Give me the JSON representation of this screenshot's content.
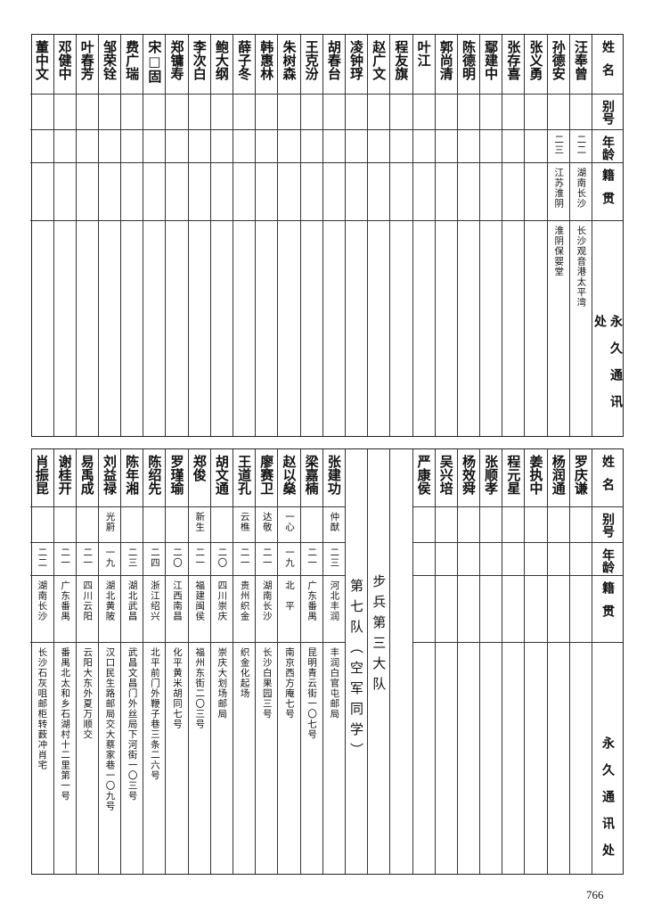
{
  "headers": {
    "name": "姓名",
    "alias": "别号",
    "age": "年龄",
    "native": "籍贯",
    "address": "永久通讯处"
  },
  "top_rows": [
    {
      "name": "汪奉曾",
      "alias": "",
      "age": "二二",
      "native": "湖南长沙",
      "address": "长沙观音港太平湾"
    },
    {
      "name": "孙德安",
      "alias": "",
      "age": "二三",
      "native": "江苏淮阴",
      "address": "淮阴保婴堂"
    },
    {
      "name": "张义勇"
    },
    {
      "name": "张存喜"
    },
    {
      "name": "鄢建中"
    },
    {
      "name": "陈德明"
    },
    {
      "name": "郭尚清"
    },
    {
      "name": "叶江"
    },
    {
      "name": "程友旗"
    },
    {
      "name": "赵广文"
    },
    {
      "name": "凌钟琈"
    },
    {
      "name": "胡春台"
    },
    {
      "name": "王克汾"
    },
    {
      "name": "朱树森"
    },
    {
      "name": "韩惠林"
    },
    {
      "name": "薛子冬"
    },
    {
      "name": "鲍大纲"
    },
    {
      "name": "李次白"
    },
    {
      "name": "郑镛寿"
    },
    {
      "name": "宋□固"
    },
    {
      "name": "费广瑞"
    },
    {
      "name": "邹荣铨"
    },
    {
      "name": "叶春芳"
    },
    {
      "name": "邓健中"
    },
    {
      "name": "董中文"
    }
  ],
  "bottom_rows_right": [
    {
      "name": "罗庆谦"
    },
    {
      "name": "杨润通"
    },
    {
      "name": "姜执中"
    },
    {
      "name": "程元星"
    },
    {
      "name": "张顺孝"
    },
    {
      "name": "杨效舜"
    },
    {
      "name": "吴兴培"
    },
    {
      "name": "严康侯"
    }
  ],
  "section_battalion": "步兵第三大队",
  "section_company": "第七队（空军同学）",
  "bottom_rows_left": [
    {
      "name": "张建功",
      "alias": "仲猷",
      "age": "二三",
      "native": "河北丰润",
      "address": "丰润白官屯邮局"
    },
    {
      "name": "梁嘉楠",
      "alias": "",
      "age": "二一",
      "native": "广东番禺",
      "address": "昆明青云街一〇七号"
    },
    {
      "name": "赵以燊",
      "alias": "一心",
      "age": "一九",
      "native": "北　平",
      "address": "南京西方庵七号"
    },
    {
      "name": "廖赛卫",
      "alias": "达敬",
      "age": "二一",
      "native": "湖南长沙",
      "address": "长沙白果园三号"
    },
    {
      "name": "王道孔",
      "alias": "云樵",
      "age": "二一",
      "native": "贵州织金",
      "address": "织金化起场"
    },
    {
      "name": "胡文通",
      "alias": "",
      "age": "二〇",
      "native": "四川崇庆",
      "address": "崇庆大划场邮局"
    },
    {
      "name": "郑俊",
      "alias": "新生",
      "age": "二一",
      "native": "福建闽侯",
      "address": "福州东街二〇三号"
    },
    {
      "name": "罗瑾瑜",
      "alias": "",
      "age": "二〇",
      "native": "江西南昌",
      "address": "化平黄米胡同七号"
    },
    {
      "name": "陈绍先",
      "alias": "",
      "age": "二四",
      "native": "浙江绍兴",
      "address": "北平前门外鞭子巷三条二六号"
    },
    {
      "name": "陈年湘",
      "alias": "",
      "age": "二三",
      "native": "湖北武昌",
      "address": "武昌文昌门外丝局下河街一〇三号"
    },
    {
      "name": "刘益禄",
      "alias": "光蔚",
      "age": "一九",
      "native": "湖北黄陂",
      "address": "汉口民生路邮局交大蔡家巷一〇九号"
    },
    {
      "name": "易禹成",
      "alias": "",
      "age": "二一",
      "native": "四川云阳",
      "address": "云阳大东外夏万顺交"
    },
    {
      "name": "谢桂开",
      "alias": "",
      "age": "二一",
      "native": "广东番禺",
      "address": "番禺北太和乡石湖村十二里第一号"
    },
    {
      "name": "肖振昆",
      "alias": "",
      "age": "二二",
      "native": "湖南长沙",
      "address": "长沙石灰咀邮柜转薮冲肖宅"
    }
  ],
  "page_number": "766"
}
